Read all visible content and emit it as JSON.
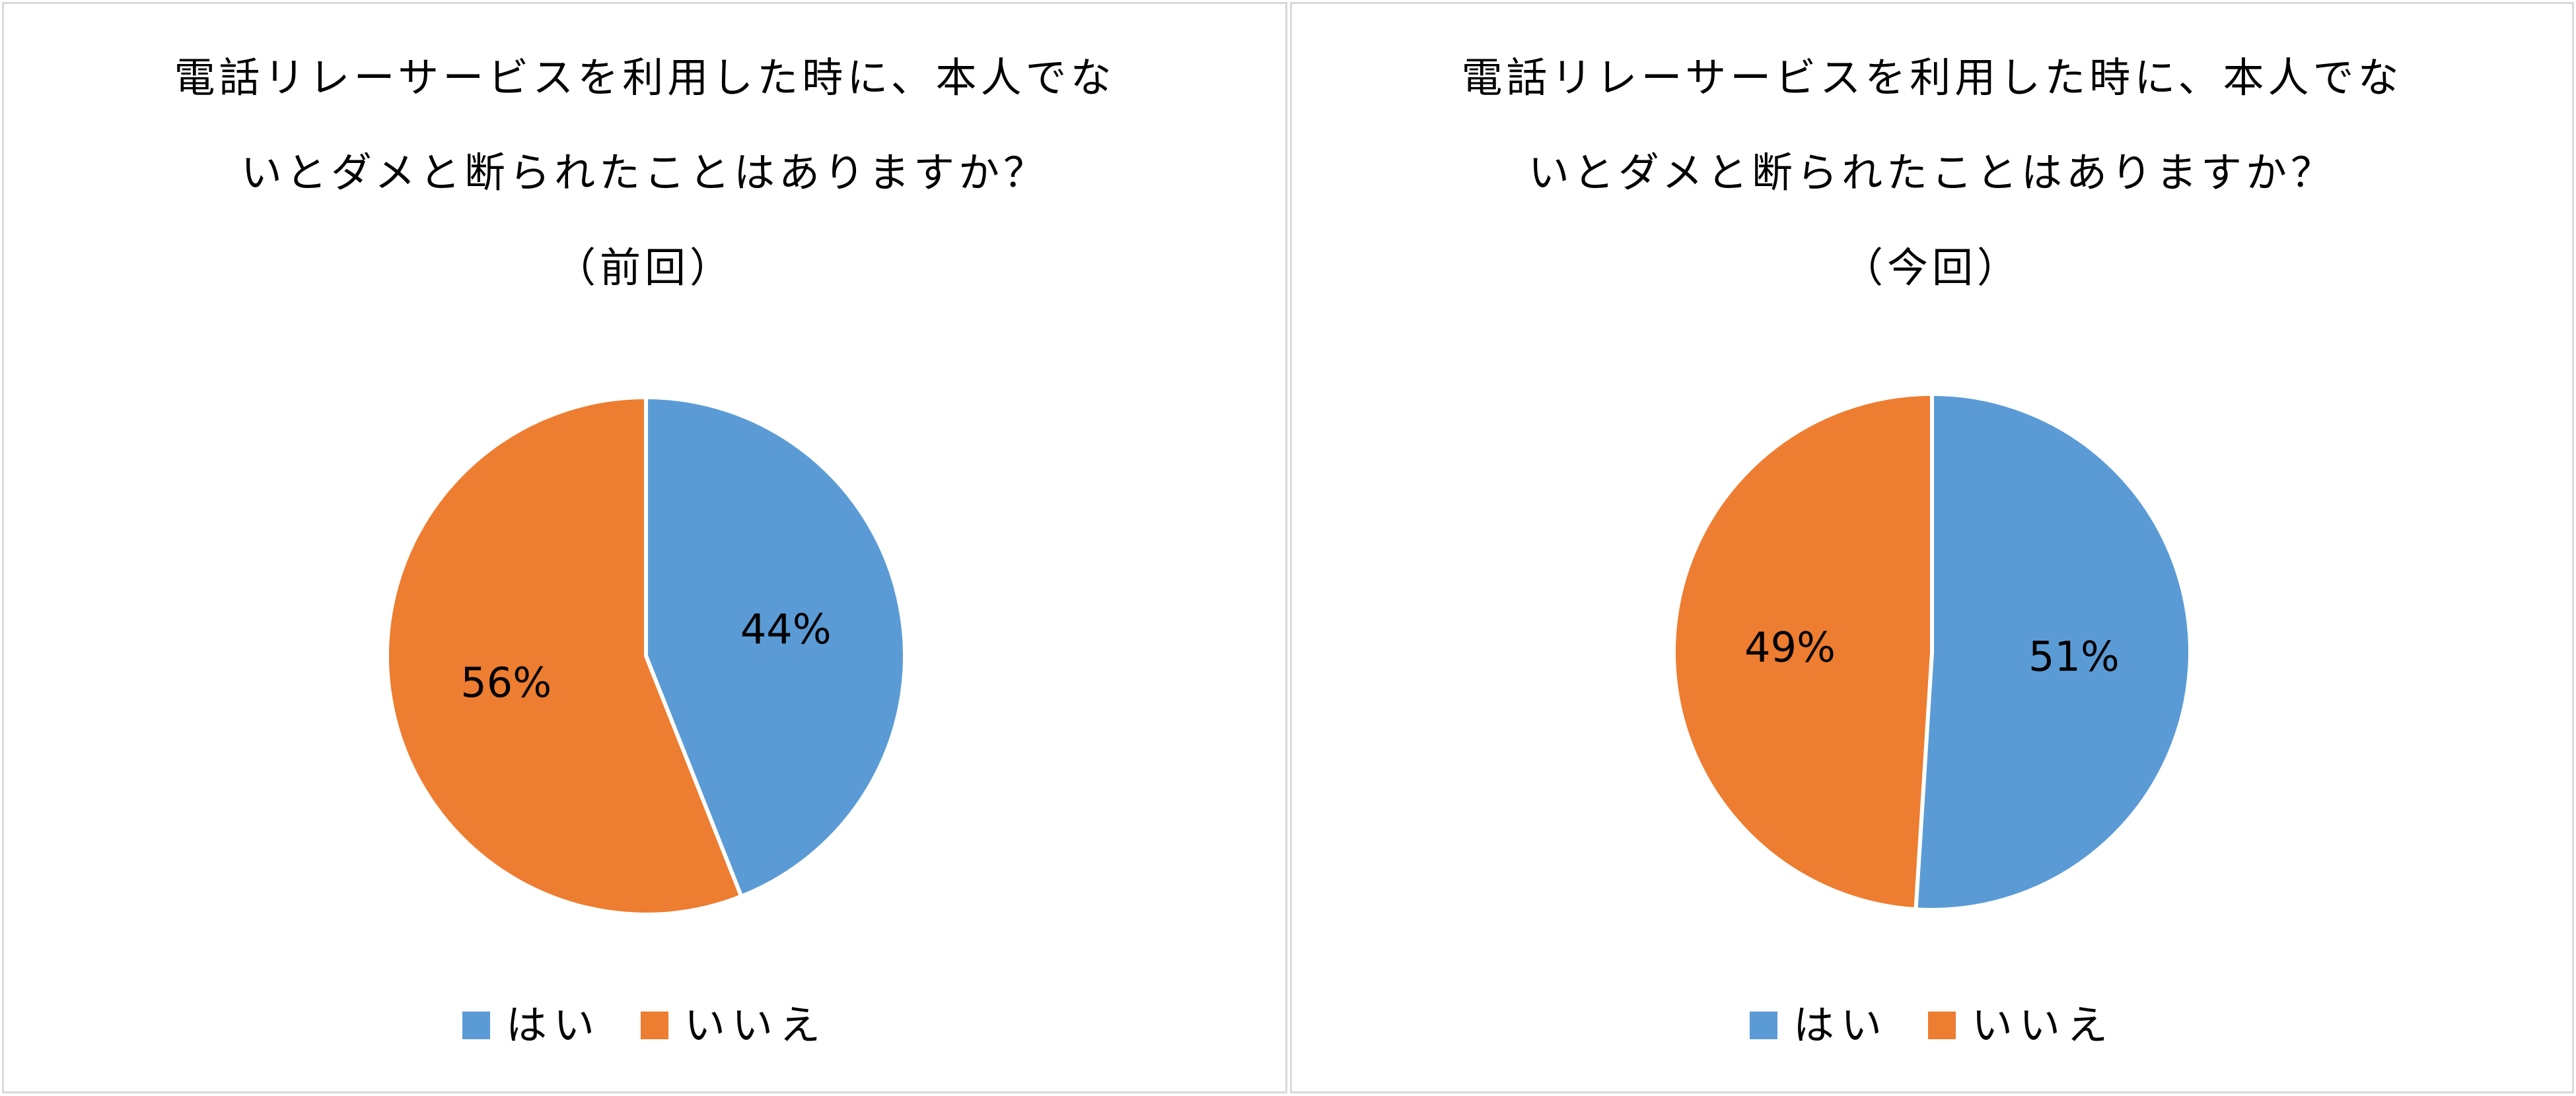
{
  "chart_data": [
    {
      "type": "pie",
      "title": "電話リレーサービスを利用した時に、本人でないとダメと断られたことはありますか？（前回）",
      "title_lines": [
        "電話リレーサービスを利用した時に、本人でな",
        "いとダメと断られたことはありますか？",
        "（前回）"
      ],
      "categories": [
        "はい",
        "いいえ"
      ],
      "values": [
        44,
        56
      ],
      "data_labels": [
        "44%",
        "56%"
      ],
      "colors": [
        "#5b9bd5",
        "#ed7d31"
      ],
      "legend_position": "bottom"
    },
    {
      "type": "pie",
      "title": "電話リレーサービスを利用した時に、本人でないとダメと断られたことはありますか？（今回）",
      "title_lines": [
        "電話リレーサービスを利用した時に、本人でな",
        "いとダメと断られたことはありますか？",
        "（今回）"
      ],
      "categories": [
        "はい",
        "いいえ"
      ],
      "values": [
        51,
        49
      ],
      "data_labels": [
        "51%",
        "49%"
      ],
      "colors": [
        "#5b9bd5",
        "#ed7d31"
      ],
      "legend_position": "bottom"
    }
  ]
}
